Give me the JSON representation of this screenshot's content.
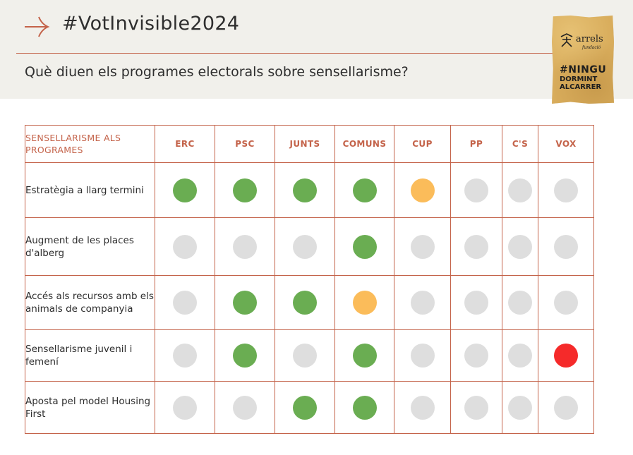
{
  "header": {
    "hashtag": "#VotInvisible2024",
    "subtitle": "Què diuen els programes electorals sobre sensellarisme?"
  },
  "logo": {
    "name": "arrels",
    "sub": "fundació",
    "slogan_line1": "#NINGU",
    "slogan_line2": "DORMINT",
    "slogan_line3": "ALCARRER"
  },
  "colors": {
    "accent": "#c4634a",
    "green": "#6aad52",
    "orange": "#fbbc5a",
    "red": "#f52a2a",
    "gray": "#dedede"
  },
  "table": {
    "corner_label": "SENSELLARISME ALS PROGRAMES",
    "parties": [
      "ERC",
      "PSC",
      "JUNTS",
      "COMUNS",
      "CUP",
      "PP",
      "C'S",
      "VOX"
    ],
    "rows": [
      {
        "label": "Estratègia a llarg termini",
        "status": [
          "green",
          "green",
          "green",
          "green",
          "orange",
          "gray",
          "gray",
          "gray"
        ]
      },
      {
        "label": "Augment de les places d'alberg",
        "status": [
          "gray",
          "gray",
          "gray",
          "green",
          "gray",
          "gray",
          "gray",
          "gray"
        ]
      },
      {
        "label": "Accés als recursos amb els animals de companyia",
        "status": [
          "gray",
          "green",
          "green",
          "orange",
          "gray",
          "gray",
          "gray",
          "gray"
        ]
      },
      {
        "label": "Sensellarisme juvenil i femení",
        "status": [
          "gray",
          "green",
          "gray",
          "green",
          "gray",
          "gray",
          "gray",
          "red"
        ]
      },
      {
        "label": "Aposta pel model Housing First",
        "status": [
          "gray",
          "gray",
          "green",
          "green",
          "gray",
          "gray",
          "gray",
          "gray"
        ]
      }
    ]
  }
}
